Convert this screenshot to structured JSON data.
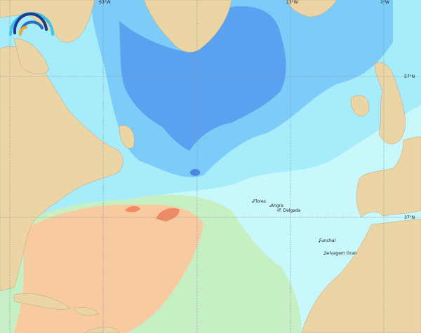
{
  "map": {
    "colors": {
      "land": "#ecd5a5",
      "ocean_base": "#c8f8fc",
      "ocean_light": "#a6ecfb",
      "ocean_mid": "#7ccbf8",
      "ocean_deep": "#5aa2f0",
      "warm_green": "#c6f0c4",
      "warm_orange": "#f8caa0",
      "warm_red": "#ef8a66"
    },
    "longitude_labels": [
      "63°W",
      "23°W",
      "3°W"
    ],
    "latitude_labels": [
      "57°N",
      "37°N"
    ],
    "places": [
      {
        "name": "Flores"
      },
      {
        "name": "Angra"
      },
      {
        "name": "P. Delgada"
      },
      {
        "name": "Funchal"
      },
      {
        "name": "Selvagem Gran"
      }
    ],
    "logo": "rainbow-arcs-logo"
  }
}
